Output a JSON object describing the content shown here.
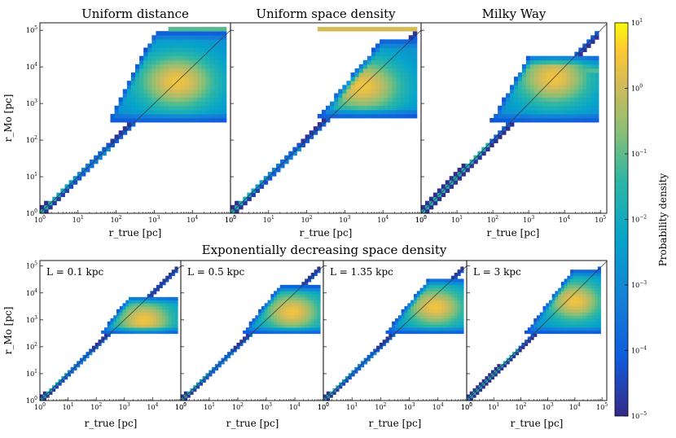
{
  "figure": {
    "group_title": "Exponentially decreasing space density",
    "xlabel": "r_true [pc]",
    "ylabel": "r_Mo [pc]",
    "colorbar_label": "Probability density",
    "colorbar_ticks": [
      "10^-5",
      "10^-4",
      "10^-3",
      "10^-2",
      "10^-1",
      "10^0",
      "10^1"
    ]
  },
  "chart_data": [
    {
      "type": "heatmap",
      "title": "Uniform distance",
      "xlabel": "r_true [pc]",
      "ylabel": "r_Mo [pc]",
      "xscale": "log",
      "yscale": "log",
      "xlim": [
        1,
        100000
      ],
      "ylim": [
        1,
        160000
      ],
      "peak": [
        4000,
        4000
      ],
      "xmax": 80000,
      "floor": 300,
      "plateau": 100000,
      "colorbar_range": [
        1e-05,
        10
      ]
    },
    {
      "type": "heatmap",
      "title": "Uniform space density",
      "xlabel": "r_true [pc]",
      "ylabel": "r_Mo [pc]",
      "xscale": "log",
      "yscale": "log",
      "xlim": [
        1,
        100000
      ],
      "ylim": [
        1,
        160000
      ],
      "peak": [
        3000,
        3000
      ],
      "xmax": 80000,
      "floor": 400,
      "plateau": 100000,
      "colorbar_range": [
        1e-05,
        10
      ]
    },
    {
      "type": "heatmap",
      "title": "Milky Way",
      "xlabel": "r_true [pc]",
      "ylabel": "r_Mo [pc]",
      "xscale": "log",
      "yscale": "log",
      "xlim": [
        1,
        150000
      ],
      "ylim": [
        1,
        160000
      ],
      "peak": [
        5000,
        5000
      ],
      "xmax": 100000,
      "floor": 300,
      "plateau": 8000,
      "colorbar_range": [
        1e-05,
        10
      ]
    },
    {
      "type": "heatmap",
      "title": "",
      "annotation": "L = 0.1 kpc",
      "xlabel": "r_true [pc]",
      "ylabel": "r_Mo [pc]",
      "xscale": "log",
      "yscale": "log",
      "xlim": [
        1,
        100000
      ],
      "ylim": [
        1,
        160000
      ],
      "peak": [
        5000,
        1000
      ],
      "xmax": 80000,
      "floor": 300,
      "colorbar_range": [
        1e-05,
        10
      ]
    },
    {
      "type": "heatmap",
      "title": "",
      "annotation": "L = 0.5 kpc",
      "xlabel": "r_true [pc]",
      "ylabel": "r_Mo [pc]",
      "xscale": "log",
      "yscale": "log",
      "xlim": [
        1,
        100000
      ],
      "ylim": [
        1,
        160000
      ],
      "peak": [
        8000,
        2000
      ],
      "xmax": 80000,
      "floor": 300,
      "colorbar_range": [
        1e-05,
        10
      ]
    },
    {
      "type": "heatmap",
      "title": "",
      "annotation": "L = 1.35 kpc",
      "xlabel": "r_true [pc]",
      "ylabel": "r_Mo [pc]",
      "xscale": "log",
      "yscale": "log",
      "xlim": [
        1,
        100000
      ],
      "ylim": [
        1,
        160000
      ],
      "peak": [
        8000,
        3000
      ],
      "xmax": 80000,
      "floor": 300,
      "colorbar_range": [
        1e-05,
        10
      ]
    },
    {
      "type": "heatmap",
      "title": "",
      "annotation": "L = 3 kpc",
      "xlabel": "r_true [pc]",
      "ylabel": "r_Mo [pc]",
      "xscale": "log",
      "yscale": "log",
      "xlim": [
        1,
        150000
      ],
      "ylim": [
        1,
        160000
      ],
      "peak": [
        10000,
        5000
      ],
      "xmax": 100000,
      "floor": 300,
      "colorbar_range": [
        1e-05,
        10
      ]
    }
  ]
}
